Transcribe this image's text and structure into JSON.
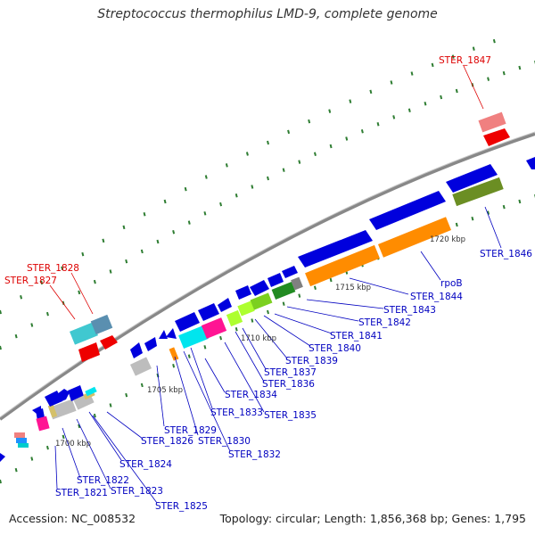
{
  "title": "Streptococcus thermophilus LMD-9, complete genome",
  "accession_text": "Accession: NC_008532",
  "topology_text": "Topology: circular; Length: 1,856,368 bp; Genes: 1,795",
  "colors": {
    "backbone": "#888888",
    "tick": "#2e7d32",
    "blue_gene": "#0000dd",
    "label_blue": "#0000c0",
    "label_red": "#dd0000"
  },
  "kbp_labels": [
    "1700 kbp",
    "1705 kbp",
    "1710 kbp",
    "1715 kbp",
    "1720 kbp"
  ],
  "genes_bottom": [
    {
      "label": "STER_1821"
    },
    {
      "label": "STER_1822"
    },
    {
      "label": "STER_1823"
    },
    {
      "label": "STER_1824"
    },
    {
      "label": "STER_1825"
    },
    {
      "label": "STER_1826"
    },
    {
      "label": "STER_1829"
    },
    {
      "label": "STER_1830"
    },
    {
      "label": "STER_1832"
    },
    {
      "label": "STER_1833"
    },
    {
      "label": "STER_1834"
    },
    {
      "label": "STER_1835"
    },
    {
      "label": "STER_1836"
    },
    {
      "label": "STER_1837"
    },
    {
      "label": "STER_1839"
    },
    {
      "label": "STER_1840"
    },
    {
      "label": "STER_1841"
    },
    {
      "label": "STER_1842"
    },
    {
      "label": "STER_1843"
    },
    {
      "label": "STER_1844"
    },
    {
      "label": "rpoB"
    },
    {
      "label": "STER_1846"
    }
  ],
  "genes_top": [
    {
      "label": "STER_1847"
    },
    {
      "label": "STER_1828"
    },
    {
      "label": "STER_1827"
    }
  ]
}
